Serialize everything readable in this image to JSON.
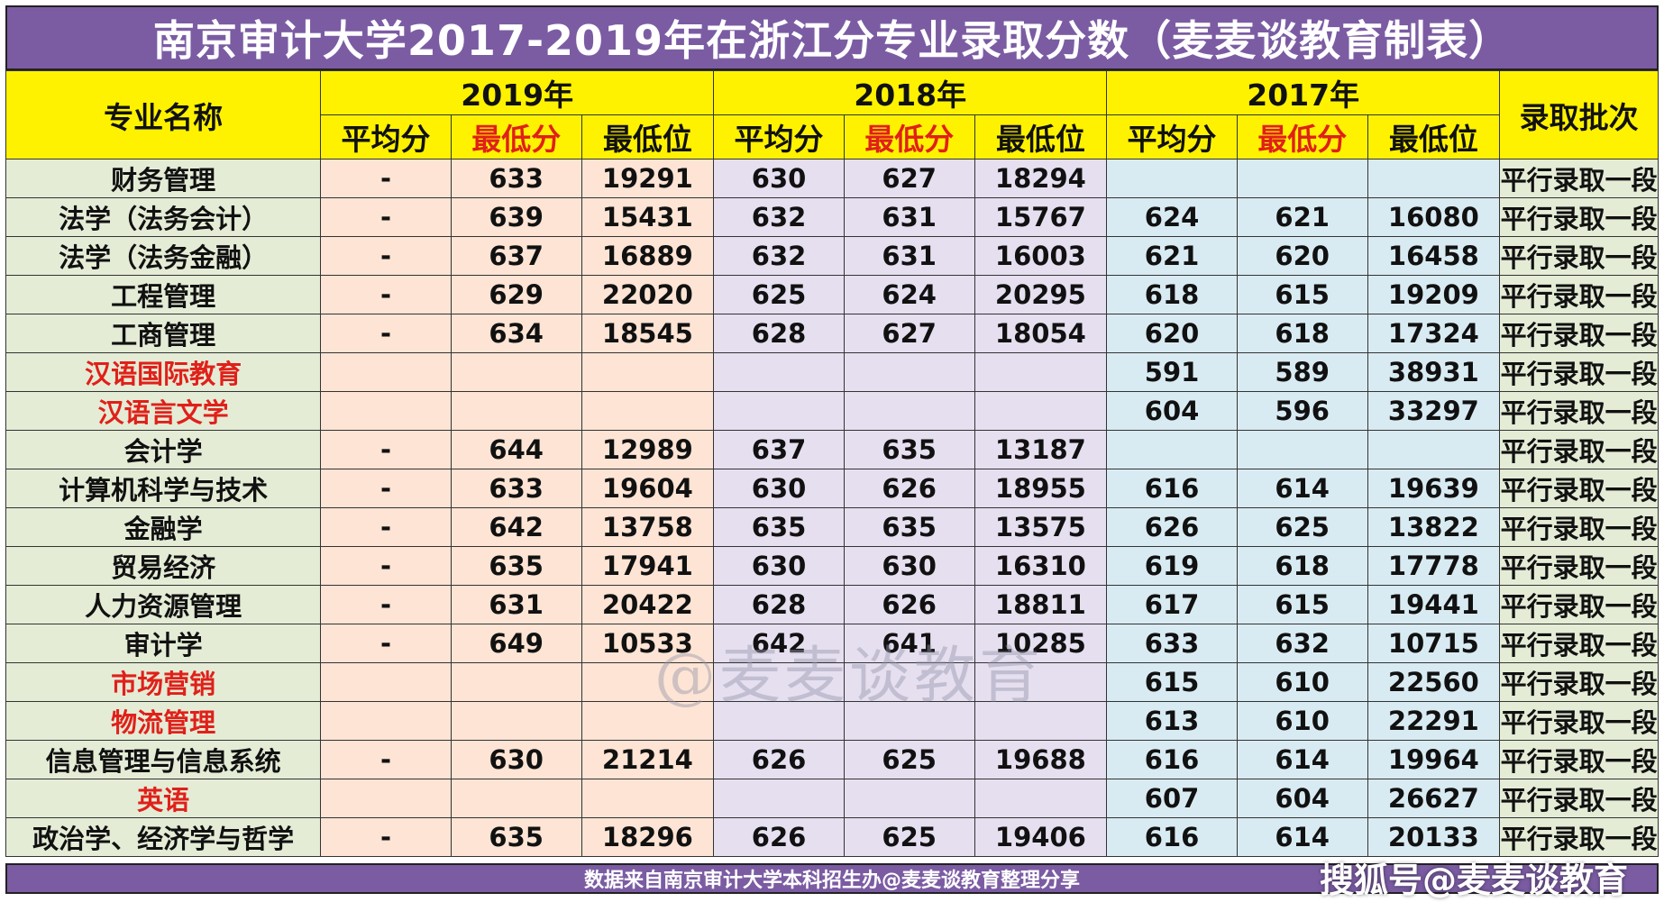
{
  "title": "南京审计大学2017-2019年在浙江分专业录取分数（麦麦谈教育制表）",
  "header": {
    "name_col": "专业名称",
    "batch_col": "录取批次",
    "years": [
      "2019年",
      "2018年",
      "2017年"
    ],
    "subcols": [
      "平均分",
      "最低分",
      "最低位"
    ]
  },
  "rows": [
    {
      "name": "财务管理",
      "red": false,
      "y2019": [
        "-",
        "633",
        "19291"
      ],
      "y2018": [
        "630",
        "627",
        "18294"
      ],
      "y2017": [
        "",
        "",
        ""
      ],
      "batch": "平行录取一段"
    },
    {
      "name": "法学（法务会计）",
      "red": false,
      "y2019": [
        "-",
        "639",
        "15431"
      ],
      "y2018": [
        "632",
        "631",
        "15767"
      ],
      "y2017": [
        "624",
        "621",
        "16080"
      ],
      "batch": "平行录取一段"
    },
    {
      "name": "法学（法务金融）",
      "red": false,
      "y2019": [
        "-",
        "637",
        "16889"
      ],
      "y2018": [
        "632",
        "631",
        "16003"
      ],
      "y2017": [
        "621",
        "620",
        "16458"
      ],
      "batch": "平行录取一段"
    },
    {
      "name": "工程管理",
      "red": false,
      "y2019": [
        "-",
        "629",
        "22020"
      ],
      "y2018": [
        "625",
        "624",
        "20295"
      ],
      "y2017": [
        "618",
        "615",
        "19209"
      ],
      "batch": "平行录取一段"
    },
    {
      "name": "工商管理",
      "red": false,
      "y2019": [
        "-",
        "634",
        "18545"
      ],
      "y2018": [
        "628",
        "627",
        "18054"
      ],
      "y2017": [
        "620",
        "618",
        "17324"
      ],
      "batch": "平行录取一段"
    },
    {
      "name": "汉语国际教育",
      "red": true,
      "y2019": [
        "",
        "",
        ""
      ],
      "y2018": [
        "",
        "",
        ""
      ],
      "y2017": [
        "591",
        "589",
        "38931"
      ],
      "batch": "平行录取一段"
    },
    {
      "name": "汉语言文学",
      "red": true,
      "y2019": [
        "",
        "",
        ""
      ],
      "y2018": [
        "",
        "",
        ""
      ],
      "y2017": [
        "604",
        "596",
        "33297"
      ],
      "batch": "平行录取一段"
    },
    {
      "name": "会计学",
      "red": false,
      "y2019": [
        "-",
        "644",
        "12989"
      ],
      "y2018": [
        "637",
        "635",
        "13187"
      ],
      "y2017": [
        "",
        "",
        ""
      ],
      "batch": "平行录取一段"
    },
    {
      "name": "计算机科学与技术",
      "red": false,
      "y2019": [
        "-",
        "633",
        "19604"
      ],
      "y2018": [
        "630",
        "626",
        "18955"
      ],
      "y2017": [
        "616",
        "614",
        "19639"
      ],
      "batch": "平行录取一段"
    },
    {
      "name": "金融学",
      "red": false,
      "y2019": [
        "-",
        "642",
        "13758"
      ],
      "y2018": [
        "635",
        "635",
        "13575"
      ],
      "y2017": [
        "626",
        "625",
        "13822"
      ],
      "batch": "平行录取一段"
    },
    {
      "name": "贸易经济",
      "red": false,
      "y2019": [
        "-",
        "635",
        "17941"
      ],
      "y2018": [
        "630",
        "630",
        "16310"
      ],
      "y2017": [
        "619",
        "618",
        "17778"
      ],
      "batch": "平行录取一段"
    },
    {
      "name": "人力资源管理",
      "red": false,
      "y2019": [
        "-",
        "631",
        "20422"
      ],
      "y2018": [
        "628",
        "626",
        "18811"
      ],
      "y2017": [
        "617",
        "615",
        "19441"
      ],
      "batch": "平行录取一段"
    },
    {
      "name": "审计学",
      "red": false,
      "y2019": [
        "-",
        "649",
        "10533"
      ],
      "y2018": [
        "642",
        "641",
        "10285"
      ],
      "y2017": [
        "633",
        "632",
        "10715"
      ],
      "batch": "平行录取一段"
    },
    {
      "name": "市场营销",
      "red": true,
      "y2019": [
        "",
        "",
        ""
      ],
      "y2018": [
        "",
        "",
        ""
      ],
      "y2017": [
        "615",
        "610",
        "22560"
      ],
      "batch": "平行录取一段"
    },
    {
      "name": "物流管理",
      "red": true,
      "y2019": [
        "",
        "",
        ""
      ],
      "y2018": [
        "",
        "",
        ""
      ],
      "y2017": [
        "613",
        "610",
        "22291"
      ],
      "batch": "平行录取一段"
    },
    {
      "name": "信息管理与信息系统",
      "red": false,
      "y2019": [
        "-",
        "630",
        "21214"
      ],
      "y2018": [
        "626",
        "625",
        "19688"
      ],
      "y2017": [
        "616",
        "614",
        "19964"
      ],
      "batch": "平行录取一段"
    },
    {
      "name": "英语",
      "red": true,
      "y2019": [
        "",
        "",
        ""
      ],
      "y2018": [
        "",
        "",
        ""
      ],
      "y2017": [
        "607",
        "604",
        "26627"
      ],
      "batch": "平行录取一段"
    },
    {
      "name": "政治学、经济学与哲学",
      "red": false,
      "y2019": [
        "-",
        "635",
        "18296"
      ],
      "y2018": [
        "626",
        "625",
        "19406"
      ],
      "y2017": [
        "616",
        "614",
        "20133"
      ],
      "batch": "平行录取一段"
    }
  ],
  "footer": "数据来自南京审计大学本科招生办@麦麦谈教育整理分享",
  "watermark": "@麦麦谈教育",
  "source_mark": "搜狐号@麦麦谈教育",
  "colors": {
    "title_bg": "#7b5ca3",
    "header_bg": "#fff200",
    "name_bg": "#e4ecd6",
    "col_2019_bg": "#fde4d4",
    "col_2018_bg": "#e6dff0",
    "col_2017_bg": "#d9ebf2",
    "highlight_red": "#e0201a"
  }
}
